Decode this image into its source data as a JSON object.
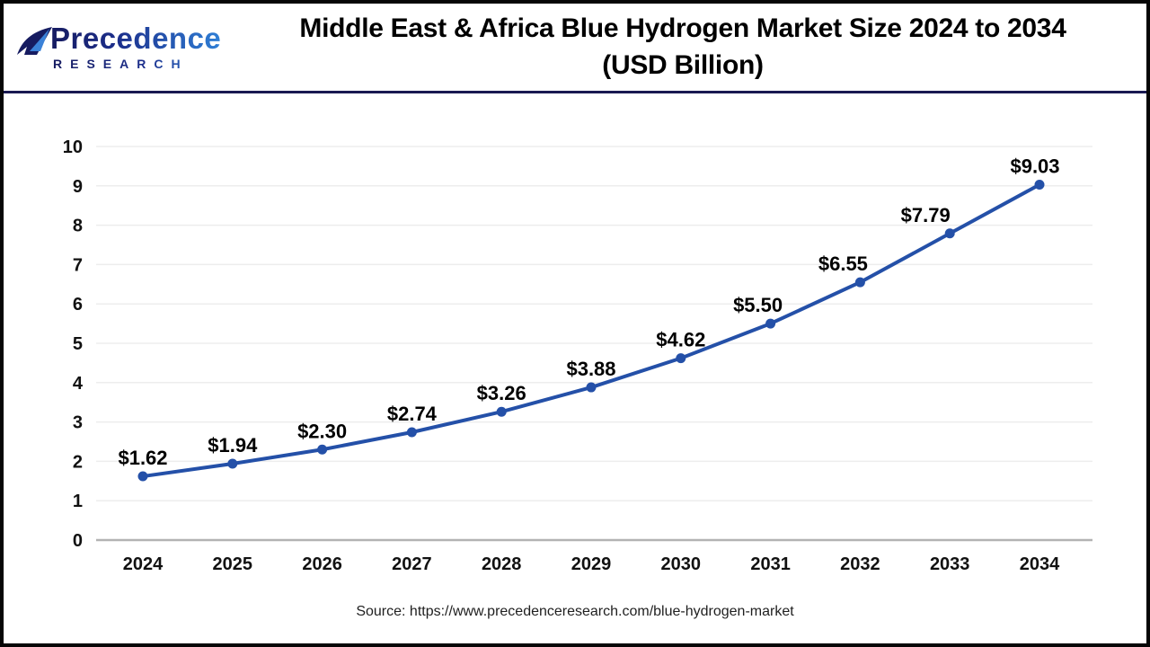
{
  "brand": {
    "name": "Precedence",
    "subtitle": "RESEARCH"
  },
  "header": {
    "title_line1": "Middle East & Africa Blue Hydrogen Market Size 2024 to 2034",
    "title_line2": "(USD Billion)"
  },
  "footer": {
    "source": "Source: https://www.precedenceresearch.com/blue-hydrogen-market"
  },
  "chart_data": {
    "type": "line",
    "title": "Middle East & Africa Blue Hydrogen Market Size 2024 to 2034 (USD Billion)",
    "x": [
      "2024",
      "2025",
      "2026",
      "2027",
      "2028",
      "2029",
      "2030",
      "2031",
      "2032",
      "2033",
      "2034"
    ],
    "values": [
      1.62,
      1.94,
      2.3,
      2.74,
      3.26,
      3.88,
      4.62,
      5.5,
      6.55,
      7.79,
      9.03
    ],
    "labels": [
      "$1.62",
      "$1.94",
      "$2.30",
      "$2.74",
      "$3.26",
      "$3.88",
      "$4.62",
      "$5.50",
      "$6.55",
      "$7.79",
      "$9.03"
    ],
    "ylim": [
      0,
      10
    ],
    "yticks": [
      0,
      1,
      2,
      3,
      4,
      5,
      6,
      7,
      8,
      9,
      10
    ],
    "grid": true,
    "legend": false,
    "label_dx": [
      0,
      0,
      0,
      0,
      0,
      0,
      0,
      -14,
      -19,
      -27,
      -5
    ],
    "colors": {
      "line": "#2450A8",
      "marker": "#2450A8",
      "grid": "#ededed",
      "axis": "#b3b3b3",
      "tick_text": "#111111",
      "data_label": "#000000",
      "divider": "#1a1a52",
      "logo_navy": "#161b60",
      "logo_blue": "#2f7fd6"
    }
  }
}
